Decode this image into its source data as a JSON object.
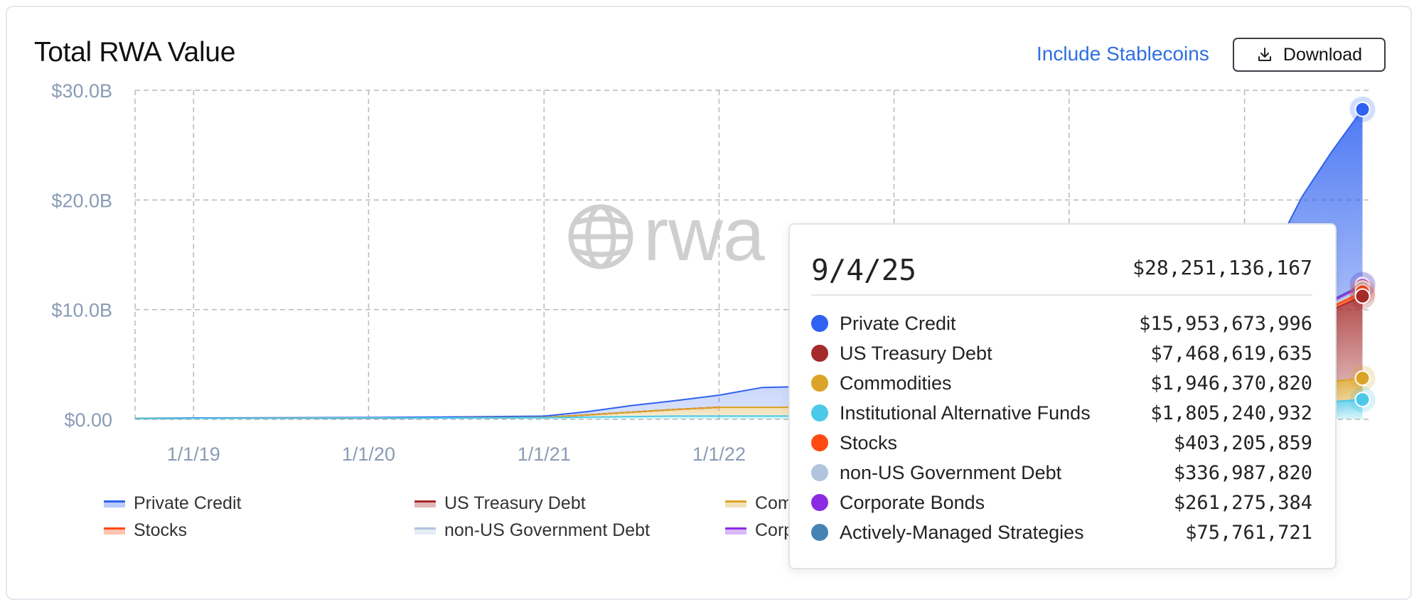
{
  "header": {
    "title": "Total RWA Value",
    "stablecoins_link": "Include Stablecoins",
    "download_label": "Download"
  },
  "watermark": {
    "text": "rwa"
  },
  "tooltip": {
    "date": "9/4/25",
    "total": "$28,251,136,167",
    "rows": [
      {
        "name": "Private Credit",
        "value": "$15,953,673,996",
        "color": "#2f62f0"
      },
      {
        "name": "US Treasury Debt",
        "value": "$7,468,619,635",
        "color": "#a52a2a"
      },
      {
        "name": "Commodities",
        "value": "$1,946,370,820",
        "color": "#dba428"
      },
      {
        "name": "Institutional Alternative Funds",
        "value": "$1,805,240,932",
        "color": "#4cc9e8"
      },
      {
        "name": "Stocks",
        "value": "$403,205,859",
        "color": "#ff4a12"
      },
      {
        "name": "non-US Government Debt",
        "value": "$336,987,820",
        "color": "#b0c4de"
      },
      {
        "name": "Corporate Bonds",
        "value": "$261,275,384",
        "color": "#8a2be2"
      },
      {
        "name": "Actively-Managed Strategies",
        "value": "$75,761,721",
        "color": "#4682b4"
      }
    ]
  },
  "legend": [
    {
      "name": "Private Credit",
      "color": "#2f62f0"
    },
    {
      "name": "US Treasury Debt",
      "color": "#a52a2a"
    },
    {
      "name": "Com",
      "color": "#dba428"
    },
    {
      "name": "Stocks",
      "color": "#ff4a12"
    },
    {
      "name": "non-US Government Debt",
      "color": "#b0c4de"
    },
    {
      "name": "Corp",
      "color": "#8a2be2"
    }
  ],
  "chart_data": {
    "type": "area",
    "stacked": true,
    "title": "Total RWA Value",
    "y_ticks": [
      "$30.0B",
      "$20.0B",
      "$10.0B",
      "$0.00"
    ],
    "x_ticks": [
      "1/1/19",
      "1/1/20",
      "1/1/21",
      "1/1/22"
    ],
    "ylim": [
      0,
      30
    ],
    "yunit": "B USD",
    "grid": true,
    "legend_position": "bottom",
    "x": [
      "2018-09-01",
      "2019-01-01",
      "2020-01-01",
      "2020-06-01",
      "2021-01-01",
      "2021-04-01",
      "2021-07-01",
      "2021-10-01",
      "2022-01-01",
      "2022-04-01",
      "2022-07-01",
      "2022-10-01",
      "2023-01-01",
      "2023-06-01",
      "2024-01-01",
      "2024-06-01",
      "2025-01-01",
      "2025-03-01",
      "2025-05-01",
      "2025-07-01",
      "2025-09-04"
    ],
    "series": [
      {
        "name": "Private Credit",
        "color": "#2f62f0",
        "values": [
          0.02,
          0.03,
          0.05,
          0.08,
          0.12,
          0.3,
          0.6,
          0.8,
          1.1,
          1.8,
          1.9,
          1.8,
          1.7,
          1.8,
          2.5,
          3.5,
          5.0,
          8.0,
          11.0,
          13.5,
          15.95
        ]
      },
      {
        "name": "US Treasury Debt",
        "color": "#a52a2a",
        "values": [
          0,
          0,
          0,
          0,
          0,
          0,
          0,
          0,
          0,
          0,
          0,
          0,
          0.1,
          0.5,
          0.9,
          1.8,
          3.0,
          4.0,
          5.5,
          6.5,
          7.47
        ]
      },
      {
        "name": "Commodities",
        "color": "#dba428",
        "values": [
          0,
          0,
          0,
          0,
          0.02,
          0.2,
          0.4,
          0.6,
          0.8,
          0.8,
          0.8,
          0.8,
          0.8,
          0.9,
          1.0,
          1.1,
          1.3,
          1.5,
          1.7,
          1.85,
          1.95
        ]
      },
      {
        "name": "Institutional Alternative Funds",
        "color": "#4cc9e8",
        "values": [
          0.08,
          0.1,
          0.12,
          0.13,
          0.15,
          0.2,
          0.25,
          0.3,
          0.3,
          0.3,
          0.3,
          0.3,
          0.35,
          0.4,
          0.5,
          0.7,
          0.9,
          1.1,
          1.4,
          1.6,
          1.81
        ]
      },
      {
        "name": "Stocks",
        "color": "#ff4a12",
        "values": [
          0,
          0,
          0,
          0,
          0,
          0,
          0,
          0,
          0,
          0,
          0,
          0,
          0,
          0,
          0,
          0,
          0.05,
          0.1,
          0.2,
          0.3,
          0.4
        ]
      },
      {
        "name": "non-US Government Debt",
        "color": "#b0c4de",
        "values": [
          0,
          0,
          0,
          0,
          0,
          0,
          0,
          0,
          0,
          0,
          0,
          0,
          0,
          0,
          0.05,
          0.1,
          0.15,
          0.2,
          0.25,
          0.3,
          0.34
        ]
      },
      {
        "name": "Corporate Bonds",
        "color": "#8a2be2",
        "values": [
          0,
          0,
          0,
          0,
          0,
          0,
          0,
          0,
          0,
          0,
          0,
          0,
          0,
          0,
          0.02,
          0.05,
          0.1,
          0.15,
          0.2,
          0.24,
          0.26
        ]
      },
      {
        "name": "Actively-Managed Strategies",
        "color": "#4682b4",
        "values": [
          0,
          0,
          0,
          0,
          0,
          0,
          0,
          0,
          0,
          0,
          0,
          0,
          0,
          0,
          0,
          0,
          0.02,
          0.04,
          0.05,
          0.06,
          0.08
        ]
      }
    ]
  }
}
